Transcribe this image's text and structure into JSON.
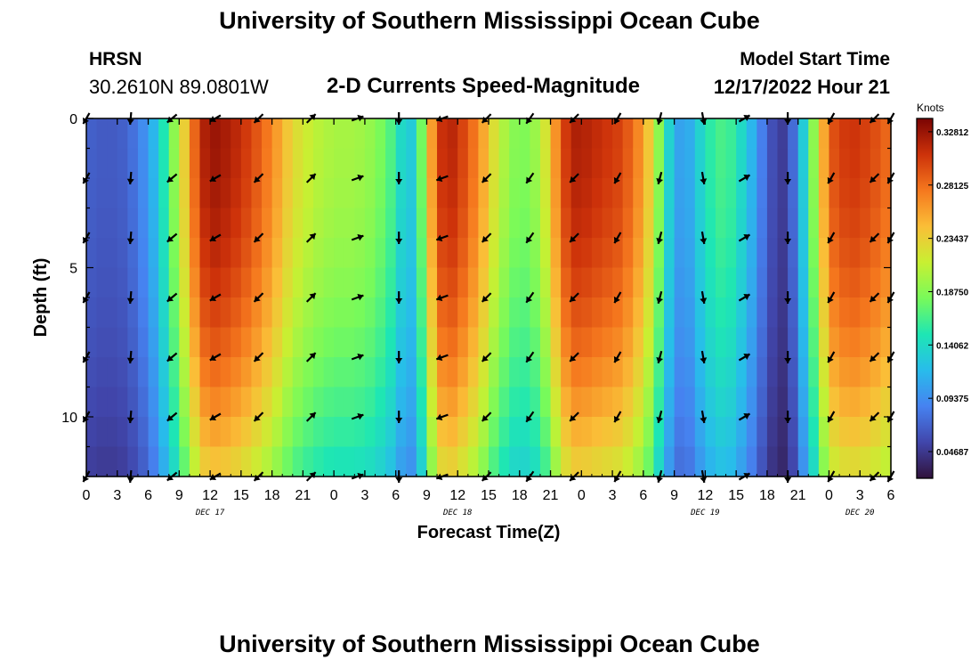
{
  "header": {
    "title": "University of Southern Mississippi Ocean Cube",
    "station": "HRSN",
    "coords": "30.2610N  89.0801W",
    "subtitle": "2-D Currents Speed-Magnitude",
    "model_start_label": "Model Start Time",
    "model_start_value": "12/17/2022 Hour 21"
  },
  "footer": {
    "title": "University of Southern Mississippi Ocean Cube"
  },
  "chart_data": {
    "type": "heatmap",
    "title": "2-D Currents Speed-Magnitude",
    "xlabel": "Forecast Time(Z)",
    "ylabel": "Depth (ft)",
    "x_tick_labels": [
      "0",
      "3",
      "6",
      "9",
      "12",
      "15",
      "18",
      "21",
      "0",
      "3",
      "6",
      "9",
      "12",
      "15",
      "18",
      "21",
      "0",
      "3",
      "6",
      "9",
      "12",
      "15",
      "18",
      "21",
      "0",
      "3",
      "6"
    ],
    "day_labels": [
      {
        "label": "DEC 17",
        "hour": 12
      },
      {
        "label": "DEC 18",
        "hour": 36
      },
      {
        "label": "DEC 19",
        "hour": 60
      },
      {
        "label": "DEC 20",
        "hour": 75
      }
    ],
    "xlim_hours": [
      0,
      78
    ],
    "ylim_ft": [
      0,
      12
    ],
    "y_ticks": [
      0,
      5,
      10
    ],
    "colorbar": {
      "unit": "Knots",
      "range": [
        0.0234,
        0.3398
      ],
      "ticks": [
        "0.04687",
        "0.09375",
        "0.14062",
        "0.18750",
        "0.23437",
        "0.28125",
        "0.32812"
      ],
      "tick_values": [
        0.04687,
        0.09375,
        0.14062,
        0.1875,
        0.23437,
        0.28125,
        0.32812
      ]
    },
    "speed_profile_hours": [
      0,
      2,
      4,
      6,
      7,
      8,
      9,
      10,
      11,
      12,
      14,
      16,
      18,
      20,
      22,
      24,
      26,
      28,
      30,
      31,
      32,
      33,
      34,
      35,
      36,
      38,
      40,
      42,
      44,
      45,
      46,
      47,
      48,
      50,
      52,
      54,
      55,
      56,
      57,
      58,
      59,
      60,
      62,
      64,
      66,
      67,
      68,
      69,
      70,
      71,
      72,
      74,
      76,
      78
    ],
    "speed_profile_knots": [
      0.07,
      0.065,
      0.07,
      0.1,
      0.13,
      0.17,
      0.21,
      0.26,
      0.31,
      0.33,
      0.32,
      0.3,
      0.27,
      0.23,
      0.21,
      0.2,
      0.2,
      0.19,
      0.16,
      0.12,
      0.14,
      0.22,
      0.3,
      0.32,
      0.31,
      0.27,
      0.21,
      0.18,
      0.2,
      0.24,
      0.29,
      0.32,
      0.32,
      0.31,
      0.3,
      0.26,
      0.22,
      0.16,
      0.11,
      0.1,
      0.12,
      0.15,
      0.17,
      0.13,
      0.07,
      0.05,
      0.05,
      0.1,
      0.16,
      0.22,
      0.29,
      0.31,
      0.3,
      0.28
    ],
    "arrow_times_hours": [
      0,
      4.3,
      8.3,
      12.5,
      16.7,
      21.8,
      26.3,
      30.3,
      34.5,
      38.8,
      43,
      47.3,
      51.5,
      55.6,
      59.8,
      63.8,
      68,
      72.2,
      76.4,
      78
    ],
    "arrow_depths_ft": [
      0,
      2,
      4,
      6,
      8,
      10,
      12
    ],
    "arrow_direction_deg_per_time": [
      240,
      265,
      220,
      210,
      225,
      45,
      20,
      270,
      200,
      225,
      235,
      225,
      240,
      255,
      280,
      30,
      270,
      240,
      225,
      240
    ]
  }
}
